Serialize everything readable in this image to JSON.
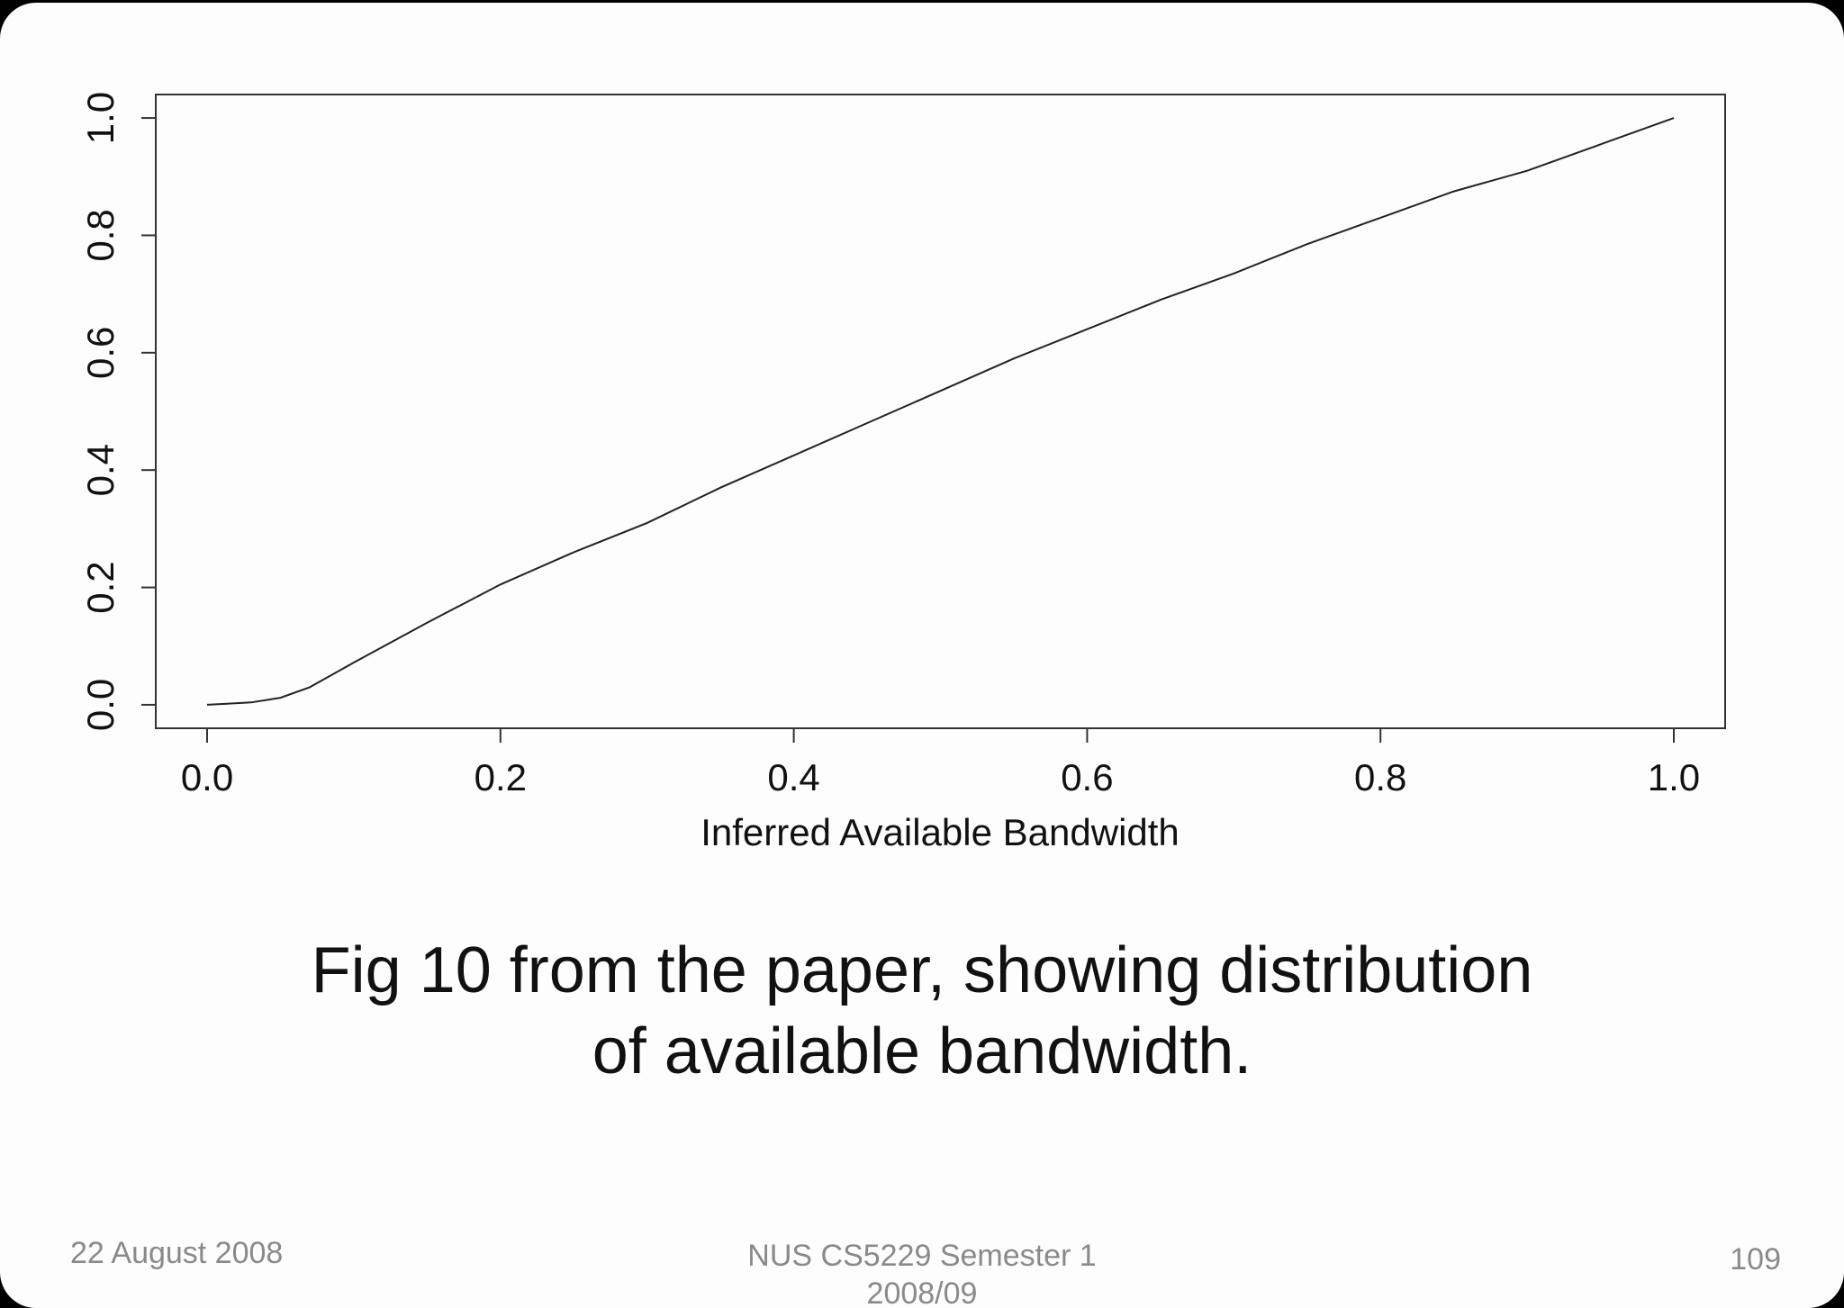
{
  "chart_data": {
    "type": "line",
    "xlabel": "Inferred Available Bandwidth",
    "ylabel": "",
    "xlim": [
      -0.035,
      1.035
    ],
    "ylim": [
      -0.04,
      1.04
    ],
    "xticks": [
      0.0,
      0.2,
      0.4,
      0.6,
      0.8,
      1.0
    ],
    "yticks": [
      0.0,
      0.2,
      0.4,
      0.6,
      0.8,
      1.0
    ],
    "xtick_labels": [
      "0.0",
      "0.2",
      "0.4",
      "0.6",
      "0.8",
      "1.0"
    ],
    "ytick_labels": [
      "0.0",
      "0.2",
      "0.4",
      "0.6",
      "0.8",
      "1.0"
    ],
    "grid": false,
    "line_color": "#222222",
    "series": [
      {
        "x": [
          0.0,
          0.03,
          0.05,
          0.07,
          0.1,
          0.15,
          0.2,
          0.25,
          0.3,
          0.35,
          0.4,
          0.45,
          0.5,
          0.55,
          0.6,
          0.65,
          0.7,
          0.75,
          0.8,
          0.85,
          0.9,
          0.95,
          1.0
        ],
        "y": [
          0.0,
          0.004,
          0.012,
          0.03,
          0.072,
          0.14,
          0.205,
          0.26,
          0.31,
          0.37,
          0.425,
          0.48,
          0.535,
          0.59,
          0.64,
          0.69,
          0.735,
          0.785,
          0.83,
          0.875,
          0.91,
          0.955,
          1.0
        ]
      }
    ]
  },
  "caption": {
    "line1": "Fig 10 from the paper, showing distribution",
    "line2": "of available bandwidth."
  },
  "footer": {
    "date": "22 August 2008",
    "course_line1": "NUS CS5229 Semester 1",
    "course_line2": "2008/09",
    "page_number": "109"
  }
}
